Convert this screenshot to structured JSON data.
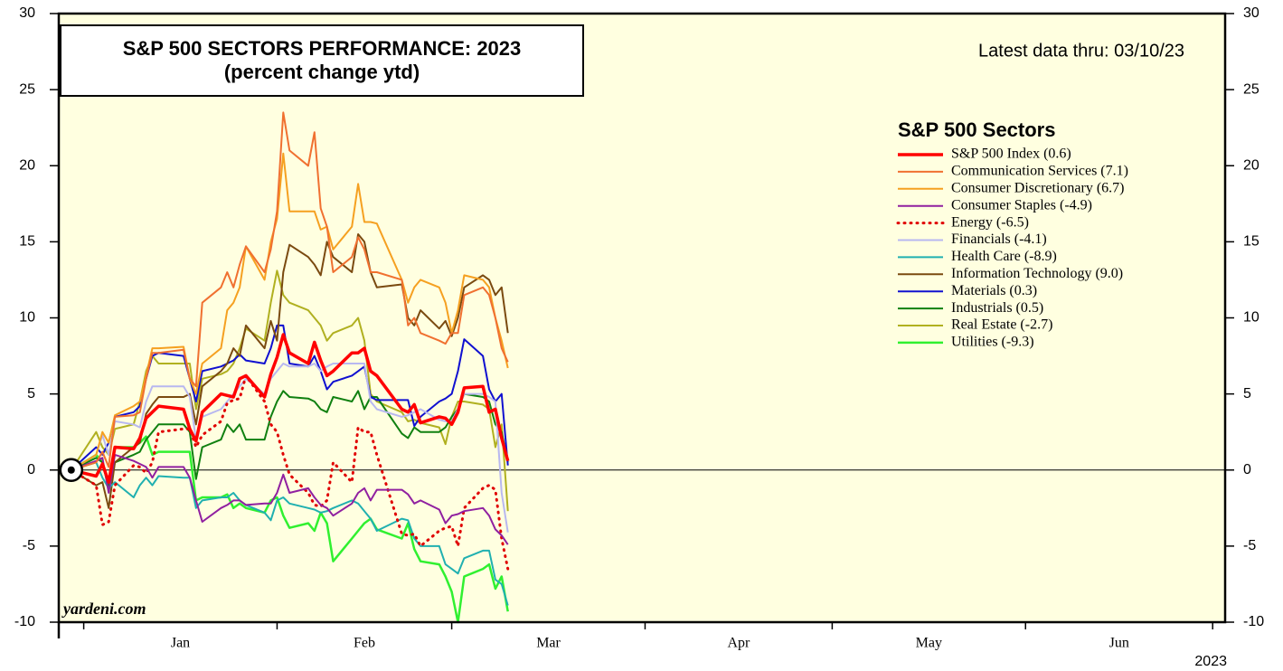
{
  "chart_data": {
    "type": "line",
    "title": "S&P 500 SECTORS PERFORMANCE: 2023",
    "subtitle": "(percent change ytd)",
    "annotation": "Latest data thru: 03/10/23",
    "legend_title": "S&P 500 Sectors",
    "source": "yardeni.com",
    "year": "2023",
    "months": [
      "Jan",
      "Feb",
      "Mar",
      "Apr",
      "May",
      "Jun"
    ],
    "x": [
      -1,
      3,
      4,
      5,
      6,
      9,
      10,
      11,
      12,
      13,
      17,
      18,
      19,
      20,
      23,
      24,
      25,
      26,
      27,
      30,
      31,
      32,
      33,
      34,
      37,
      38,
      39,
      40,
      41,
      44,
      45,
      46,
      47,
      48,
      52,
      53,
      54,
      55,
      58,
      59,
      60,
      61,
      62,
      65,
      66,
      67,
      68,
      69
    ],
    "xlim": [
      -3,
      184
    ],
    "xticks": [
      1,
      32,
      60,
      91,
      121,
      152,
      182
    ],
    "ylim": [
      -10,
      30
    ],
    "yticks": [
      -10,
      -5,
      0,
      5,
      10,
      15,
      20,
      25,
      30
    ],
    "series": [
      {
        "name": "S&P 500 Index (0.6)",
        "color": "#ff0000",
        "width": 3.5,
        "values": [
          0,
          -0.4,
          0.4,
          -0.8,
          1.5,
          1.4,
          2.1,
          3.4,
          3.8,
          4.2,
          4.0,
          2.7,
          1.9,
          3.8,
          5.0,
          4.9,
          4.8,
          6.0,
          6.2,
          4.8,
          6.3,
          7.4,
          8.9,
          7.7,
          7.0,
          8.4,
          7.2,
          6.2,
          6.5,
          7.7,
          7.7,
          8.0,
          6.5,
          6.2,
          4.0,
          3.8,
          4.3,
          3.1,
          3.5,
          3.4,
          3.0,
          3.8,
          5.4,
          5.5,
          3.8,
          4.0,
          2.1,
          0.6
        ]
      },
      {
        "name": "Communication Services (7.1)",
        "color": "#f07030",
        "width": 2,
        "values": [
          0,
          0.5,
          1.2,
          0.2,
          3.5,
          3.6,
          3.8,
          6.0,
          7.7,
          7.7,
          7.9,
          6.0,
          5.5,
          11.0,
          12.0,
          13.0,
          12.0,
          13.5,
          14.7,
          13.0,
          14.5,
          17.0,
          23.5,
          21.0,
          20.0,
          22.2,
          17.2,
          16.0,
          13.0,
          14.0,
          15.3,
          14.5,
          13.0,
          13.0,
          12.5,
          9.5,
          10.0,
          9.0,
          8.5,
          8.3,
          9.0,
          9.0,
          11.5,
          12.0,
          11.5,
          10.0,
          8.0,
          7.1
        ]
      },
      {
        "name": "Consumer Discretionary (6.7)",
        "color": "#f5a020",
        "width": 2,
        "values": [
          0,
          1.0,
          2.5,
          1.8,
          3.6,
          4.2,
          4.5,
          6.2,
          8.0,
          8.0,
          8.1,
          6.0,
          5.0,
          7.0,
          8.0,
          10.5,
          11.0,
          12.0,
          14.7,
          12.5,
          15.0,
          16.5,
          20.8,
          17.0,
          17.0,
          17.0,
          15.8,
          16.0,
          14.5,
          16.0,
          18.8,
          16.3,
          16.3,
          16.2,
          12.5,
          11.0,
          12.0,
          12.5,
          12.0,
          11.0,
          9.0,
          10.5,
          12.8,
          12.5,
          12.0,
          10.0,
          8.5,
          6.7
        ]
      },
      {
        "name": "Consumer Staples (-4.9)",
        "color": "#9020a0",
        "width": 2,
        "values": [
          0,
          0.6,
          0.8,
          -1.5,
          1.0,
          0.6,
          0.4,
          0.2,
          -0.5,
          0.2,
          0.2,
          -0.5,
          -2.0,
          -3.4,
          -2.5,
          -2.3,
          -2.0,
          -2.0,
          -2.3,
          -2.2,
          -2.2,
          -1.5,
          -0.3,
          -1.5,
          -1.2,
          -1.8,
          -2.3,
          -2.5,
          -3.0,
          -2.2,
          -1.5,
          -1.2,
          -2.0,
          -1.3,
          -1.3,
          -1.6,
          -2.2,
          -2.0,
          -2.6,
          -3.5,
          -3.0,
          -2.9,
          -2.7,
          -2.5,
          -3.0,
          -3.9,
          -4.3,
          -4.9
        ]
      },
      {
        "name": "Energy (-6.5)",
        "color": "#e00000",
        "width": 3,
        "style": "dotted",
        "values": [
          0,
          -1.0,
          -3.6,
          -3.4,
          -1.0,
          0.3,
          0.2,
          -0.2,
          0.5,
          2.5,
          2.7,
          2.7,
          1.5,
          2.3,
          3.2,
          4.4,
          4.6,
          4.7,
          6.2,
          4.5,
          3.0,
          2.5,
          1.0,
          -0.3,
          -1.5,
          -2.3,
          -2.4,
          -2.0,
          0.5,
          -0.8,
          2.8,
          2.5,
          2.5,
          1.0,
          -4.2,
          -4.3,
          -4.2,
          -5.0,
          -4.0,
          -3.8,
          -3.7,
          -5.0,
          -2.5,
          -1.2,
          -1.0,
          -1.3,
          -4.5,
          -6.5
        ]
      },
      {
        "name": "Financials (-4.1)",
        "color": "#b8b8f0",
        "width": 2,
        "values": [
          0,
          1.0,
          2.3,
          1.0,
          3.2,
          3.0,
          2.8,
          4.5,
          5.5,
          5.5,
          5.5,
          4.8,
          2.0,
          3.5,
          4.0,
          4.5,
          5.0,
          5.5,
          6.0,
          5.0,
          6.0,
          6.5,
          7.0,
          6.8,
          6.8,
          7.0,
          6.5,
          6.8,
          7.0,
          7.0,
          7.0,
          7.0,
          4.5,
          4.0,
          3.5,
          3.6,
          3.8,
          4.0,
          3.3,
          3.2,
          3.2,
          4.0,
          5.0,
          5.0,
          4.8,
          4.5,
          -1.5,
          -4.1
        ]
      },
      {
        "name": "Health Care (-8.9)",
        "color": "#20b0b0",
        "width": 2,
        "values": [
          0,
          0.5,
          -0.5,
          -1.2,
          -0.8,
          -1.8,
          -1.0,
          -0.5,
          -1.0,
          -0.4,
          -0.5,
          -0.5,
          -2.5,
          -2.0,
          -1.8,
          -1.8,
          -1.5,
          -2.0,
          -2.3,
          -2.8,
          -3.3,
          -2.0,
          -1.8,
          -2.2,
          -2.5,
          -2.6,
          -2.8,
          -2.7,
          -2.5,
          -2.0,
          -2.2,
          -2.7,
          -3.2,
          -4.0,
          -3.2,
          -3.3,
          -4.5,
          -5.0,
          -5.0,
          -6.2,
          -6.5,
          -6.8,
          -5.8,
          -5.3,
          -5.3,
          -7.2,
          -7.5,
          -8.9
        ]
      },
      {
        "name": "Information Technology (9.0)",
        "color": "#7a4a10",
        "width": 2,
        "values": [
          0,
          -1.0,
          -0.8,
          -2.5,
          0.5,
          1.5,
          1.8,
          3.7,
          4.3,
          4.8,
          4.8,
          5.0,
          3.0,
          5.5,
          6.5,
          7.0,
          8.0,
          7.5,
          9.5,
          8.0,
          9.8,
          8.5,
          13.0,
          14.8,
          14.0,
          13.5,
          12.8,
          15.0,
          14.0,
          13.0,
          15.5,
          15.0,
          13.0,
          12.0,
          12.2,
          10.0,
          9.5,
          10.5,
          9.3,
          9.8,
          8.8,
          10.0,
          12.0,
          12.8,
          12.5,
          11.5,
          12.0,
          9.0
        ]
      },
      {
        "name": "Materials (0.3)",
        "color": "#1010d0",
        "width": 2,
        "values": [
          0,
          1.5,
          1.0,
          1.8,
          3.5,
          3.8,
          4.2,
          6.0,
          7.5,
          7.7,
          7.5,
          6.0,
          4.5,
          6.5,
          6.8,
          7.0,
          7.2,
          7.6,
          7.2,
          7.0,
          8.0,
          9.5,
          9.5,
          7.0,
          6.8,
          7.5,
          6.5,
          5.3,
          5.8,
          6.2,
          6.5,
          6.8,
          4.8,
          4.6,
          4.6,
          4.6,
          2.9,
          3.5,
          4.5,
          4.7,
          5.0,
          6.5,
          8.6,
          7.5,
          5.3,
          4.5,
          5.0,
          0.3
        ]
      },
      {
        "name": "Industrials (0.5)",
        "color": "#108010",
        "width": 2,
        "values": [
          0,
          0.8,
          0.5,
          -1.2,
          0.5,
          1.0,
          1.2,
          2.0,
          2.5,
          3.0,
          3.0,
          2.5,
          -0.6,
          1.5,
          2.0,
          3.0,
          2.5,
          3.0,
          2.0,
          2.0,
          3.5,
          4.5,
          5.2,
          4.8,
          4.7,
          4.5,
          4.0,
          3.8,
          4.8,
          4.5,
          5.2,
          4.0,
          4.8,
          4.8,
          2.4,
          2.1,
          2.8,
          2.5,
          2.5,
          2.8,
          3.5,
          4.0,
          5.0,
          4.8,
          4.5,
          3.0,
          2.5,
          0.5
        ]
      },
      {
        "name": "Real Estate (-2.7)",
        "color": "#b0b020",
        "width": 2,
        "values": [
          0,
          2.5,
          1.5,
          1.0,
          2.7,
          3.0,
          4.5,
          6.5,
          7.5,
          7.0,
          7.0,
          7.0,
          4.0,
          6.0,
          6.3,
          6.5,
          7.0,
          8.0,
          9.3,
          8.5,
          11.0,
          13.1,
          11.5,
          11.0,
          10.5,
          10.0,
          9.5,
          8.5,
          9.0,
          9.5,
          10.0,
          8.5,
          5.0,
          4.5,
          3.8,
          3.2,
          3.3,
          3.1,
          2.8,
          1.7,
          3.5,
          4.5,
          4.5,
          4.3,
          4.0,
          1.5,
          3.0,
          -2.7
        ]
      },
      {
        "name": "Utilities (-9.3)",
        "color": "#30f030",
        "width": 2.5,
        "values": [
          0,
          1.0,
          0.5,
          -1.0,
          1.5,
          1.5,
          1.8,
          2.2,
          1.0,
          1.2,
          1.2,
          1.2,
          -2.0,
          -1.8,
          -1.8,
          -1.6,
          -2.5,
          -2.2,
          -2.5,
          -2.8,
          -2.0,
          -1.8,
          -3.0,
          -3.8,
          -3.5,
          -4.0,
          -2.8,
          -3.5,
          -6.0,
          -4.5,
          -4.0,
          -3.5,
          -3.2,
          -3.9,
          -4.5,
          -3.5,
          -5.2,
          -6.0,
          -6.2,
          -7.0,
          -8.0,
          -10.0,
          -7.0,
          -6.5,
          -6.2,
          -7.8,
          -7.0,
          -9.3
        ]
      }
    ],
    "background": "#ffffe0"
  }
}
